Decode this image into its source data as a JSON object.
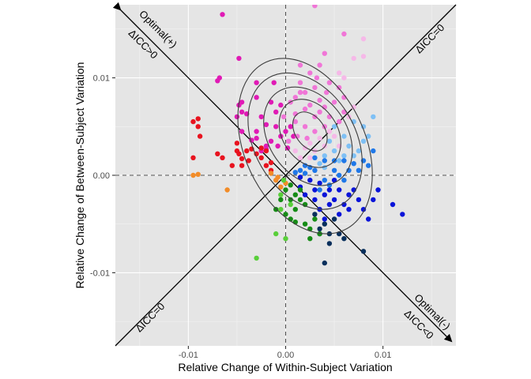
{
  "chart_data": {
    "type": "scatter",
    "title": "",
    "xlabel": "Relative Change of Within-Subject Variation",
    "ylabel": "Relative Change of Between-Subject Variation",
    "xlim": [
      -0.0175,
      0.0175
    ],
    "ylim": [
      -0.0175,
      0.0175
    ],
    "x_ticks": [
      -0.01,
      0.0,
      0.01
    ],
    "x_tick_labels": [
      "-0.01",
      "0.00",
      "0.01"
    ],
    "y_ticks": [
      -0.01,
      0.0,
      0.01
    ],
    "y_tick_labels": [
      "-0.01",
      "0.00",
      "0.01"
    ],
    "grid": true,
    "reference_lines": {
      "x": 0.0,
      "y": 0.0,
      "style": "dashed"
    },
    "diagonal_lines": [
      {
        "name": "optimal",
        "slope": -1,
        "arrows": "both"
      },
      {
        "name": "icc-zero",
        "slope": 1
      }
    ],
    "annotations": [
      {
        "text": "Optimal(+)",
        "position": "upper-left"
      },
      {
        "text": "ΔICC>0",
        "position": "upper-left"
      },
      {
        "text": "ΔICC=0",
        "position": "upper-right"
      },
      {
        "text": "Optimal(-)",
        "position": "lower-right"
      },
      {
        "text": "ΔICC<0",
        "position": "lower-right"
      },
      {
        "text": "ΔICC=0",
        "position": "lower-left"
      }
    ],
    "contour_levels": [
      {
        "center": [
          0.0025,
          0.0045
        ],
        "rx": 0.0015,
        "ry": 0.0022,
        "rotation": -35
      },
      {
        "center": [
          0.0025,
          0.0043
        ],
        "rx": 0.0028,
        "ry": 0.0038,
        "rotation": -35
      },
      {
        "center": [
          0.0023,
          0.004
        ],
        "rx": 0.004,
        "ry": 0.0055,
        "rotation": -35
      },
      {
        "center": [
          0.002,
          0.0035
        ],
        "rx": 0.0052,
        "ry": 0.0075,
        "rotation": -30
      },
      {
        "center": [
          0.002,
          0.003
        ],
        "rx": 0.0062,
        "ry": 0.0095,
        "rotation": -25
      }
    ],
    "series": [
      {
        "name": "magenta",
        "color": "#e01ab5",
        "points": [
          [
            -0.0065,
            0.0165
          ],
          [
            -0.0045,
            0.0045
          ],
          [
            -0.005,
            0.006
          ],
          [
            -0.0068,
            0.01
          ],
          [
            -0.007,
            0.0097
          ],
          [
            -0.0048,
            0.012
          ],
          [
            -0.004,
            0.0063
          ],
          [
            -0.0045,
            0.0075
          ],
          [
            -0.003,
            0.008
          ],
          [
            -0.0015,
            0.0075
          ],
          [
            -0.002,
            0.0052
          ],
          [
            -0.0025,
            0.006
          ],
          [
            -0.003,
            0.0045
          ],
          [
            -0.0035,
            0.0036
          ],
          [
            -0.001,
            0.005
          ],
          [
            -0.0005,
            0.004
          ],
          [
            0.0005,
            0.005
          ],
          [
            -0.0012,
            0.0095
          ],
          [
            -0.001,
            0.0065
          ],
          [
            -0.002,
            0.003
          ],
          [
            -0.0025,
            0.0025
          ],
          [
            -0.0015,
            0.0035
          ],
          [
            -0.0008,
            0.003
          ],
          [
            0.0,
            0.0045
          ],
          [
            -0.0045,
            0.0065
          ],
          [
            -0.003,
            0.0095
          ],
          [
            -0.0048,
            0.0072
          ],
          [
            -0.002,
            0.0027
          ],
          [
            -0.003,
            0.0038
          ],
          [
            0.0002,
            0.0028
          ],
          [
            0.0008,
            0.004
          ],
          [
            -0.0005,
            0.0072
          ]
        ]
      },
      {
        "name": "pink",
        "color": "#f076d7",
        "points": [
          [
            0.001,
            0.008
          ],
          [
            0.002,
            0.0085
          ],
          [
            0.003,
            0.009
          ],
          [
            0.0025,
            0.0072
          ],
          [
            0.0035,
            0.0077
          ],
          [
            0.0042,
            0.0085
          ],
          [
            0.004,
            0.007
          ],
          [
            0.003,
            0.006
          ],
          [
            0.002,
            0.0068
          ],
          [
            0.001,
            0.0063
          ],
          [
            0.0005,
            0.0075
          ],
          [
            0.0015,
            0.0095
          ],
          [
            0.0025,
            0.0105
          ],
          [
            0.0015,
            0.0113
          ],
          [
            0.0035,
            0.0113
          ],
          [
            0.004,
            0.0125
          ],
          [
            0.0032,
            0.01
          ],
          [
            0.0045,
            0.0095
          ],
          [
            0.0055,
            0.009
          ],
          [
            0.005,
            0.0075
          ],
          [
            0.006,
            0.008
          ],
          [
            0.006,
            0.0065
          ],
          [
            0.0055,
            0.0055
          ],
          [
            0.0045,
            0.006
          ],
          [
            0.004,
            0.005
          ],
          [
            0.003,
            0.0045
          ],
          [
            0.002,
            0.005
          ],
          [
            0.001,
            0.0055
          ],
          [
            -0.0002,
            0.006
          ],
          [
            0.0003,
            0.0035
          ],
          [
            0.0012,
            0.004
          ],
          [
            0.0022,
            0.0038
          ],
          [
            0.003,
            0.0174
          ],
          [
            0.006,
            0.0145
          ],
          [
            0.0015,
            0.0085
          ],
          [
            0.0035,
            0.0065
          ]
        ]
      },
      {
        "name": "light-pink",
        "color": "#f6b8e8",
        "points": [
          [
            0.008,
            0.014
          ],
          [
            0.008,
            0.0122
          ],
          [
            0.007,
            0.012
          ],
          [
            0.006,
            0.01
          ],
          [
            0.0055,
            0.0105
          ],
          [
            0.0065,
            0.006
          ],
          [
            0.007,
            0.007
          ],
          [
            0.005,
            0.004
          ],
          [
            0.004,
            0.003
          ],
          [
            0.003,
            0.0025
          ],
          [
            0.002,
            0.0028
          ],
          [
            0.0025,
            0.0018
          ],
          [
            0.0035,
            0.0038
          ],
          [
            0.0045,
            0.0045
          ],
          [
            0.0055,
            0.003
          ],
          [
            0.0015,
            0.0018
          ],
          [
            0.001,
            0.0025
          ],
          [
            0.0025,
            0.0033
          ]
        ]
      },
      {
        "name": "red",
        "color": "#e8131f",
        "points": [
          [
            -0.0095,
            0.0055
          ],
          [
            -0.009,
            0.005
          ],
          [
            -0.009,
            0.0058
          ],
          [
            -0.0088,
            0.004
          ],
          [
            -0.007,
            0.0022
          ],
          [
            -0.005,
            0.0025
          ],
          [
            -0.0048,
            0.0022
          ],
          [
            -0.0045,
            0.0017
          ],
          [
            -0.004,
            0.0025
          ],
          [
            -0.0038,
            0.0015
          ],
          [
            -0.005,
            0.0033
          ],
          [
            -0.003,
            0.0022
          ],
          [
            -0.0025,
            0.0018
          ],
          [
            -0.002,
            0.001
          ],
          [
            -0.0015,
            0.0013
          ],
          [
            -0.0015,
            0.0005
          ],
          [
            -0.002,
            0.0025
          ],
          [
            -0.0055,
            0.001
          ],
          [
            -0.0045,
            0.001
          ],
          [
            -0.0095,
            0.0018
          ],
          [
            -0.0065,
            0.0018
          ],
          [
            -0.0025,
            0.0028
          ],
          [
            -0.0035,
            0.0027
          ]
        ]
      },
      {
        "name": "orange",
        "color": "#f28c28",
        "points": [
          [
            -0.0095,
            0.0
          ],
          [
            -0.009,
            0.0001
          ],
          [
            -0.006,
            -0.0015
          ],
          [
            -0.001,
            -0.0005
          ],
          [
            -0.0005,
            -0.0012
          ],
          [
            0.0,
            -0.0008
          ],
          [
            -0.0008,
            -0.0002
          ],
          [
            -0.0015,
            0.0002
          ]
        ]
      },
      {
        "name": "light-blue",
        "color": "#7ec0f5",
        "points": [
          [
            0.004,
            0.002
          ],
          [
            0.005,
            0.0025
          ],
          [
            0.006,
            0.002
          ],
          [
            0.0055,
            0.0015
          ],
          [
            0.0065,
            0.003
          ],
          [
            0.007,
            0.002
          ],
          [
            0.008,
            0.0035
          ],
          [
            0.0075,
            0.0025
          ],
          [
            0.006,
            0.004
          ],
          [
            0.005,
            0.005
          ],
          [
            0.0085,
            0.004
          ],
          [
            0.009,
            0.006
          ],
          [
            0.007,
            0.0055
          ],
          [
            0.008,
            0.005
          ],
          [
            0.0045,
            0.0035
          ],
          [
            0.0035,
            0.0012
          ],
          [
            0.004,
            0.0008
          ]
        ]
      },
      {
        "name": "mid-blue",
        "color": "#1f78e8",
        "points": [
          [
            0.002,
            0.001
          ],
          [
            0.003,
            0.0005
          ],
          [
            0.004,
            -0.0005
          ],
          [
            0.005,
            0.0005
          ],
          [
            0.006,
            0.0015
          ],
          [
            0.0065,
            0.0005
          ],
          [
            0.0055,
            0.0
          ],
          [
            0.0045,
            -0.001
          ],
          [
            0.0035,
            -0.0015
          ],
          [
            0.007,
            0.0012
          ],
          [
            0.0075,
            0.0005
          ],
          [
            0.008,
            0.0015
          ],
          [
            0.006,
            -0.0005
          ],
          [
            0.0025,
            0.0008
          ],
          [
            0.0015,
            0.0005
          ],
          [
            0.002,
            0.0002
          ],
          [
            0.005,
            0.0015
          ],
          [
            0.004,
            0.0015
          ],
          [
            0.003,
            0.0018
          ],
          [
            0.001,
            0.0003
          ],
          [
            0.0085,
            0.001
          ],
          [
            0.009,
            0.0025
          ]
        ]
      },
      {
        "name": "dark-blue",
        "color": "#0a14d9",
        "points": [
          [
            0.003,
            -0.0015
          ],
          [
            0.004,
            -0.002
          ],
          [
            0.005,
            -0.0025
          ],
          [
            0.0045,
            -0.003
          ],
          [
            0.0035,
            -0.0035
          ],
          [
            0.0055,
            -0.004
          ],
          [
            0.006,
            -0.003
          ],
          [
            0.0065,
            -0.002
          ],
          [
            0.007,
            -0.0015
          ],
          [
            0.0075,
            -0.0025
          ],
          [
            0.008,
            -0.0035
          ],
          [
            0.009,
            -0.0025
          ],
          [
            0.0085,
            -0.0045
          ],
          [
            0.0095,
            -0.0015
          ],
          [
            0.011,
            -0.003
          ],
          [
            0.012,
            -0.004
          ],
          [
            0.0025,
            -0.0005
          ],
          [
            0.0035,
            -0.0008
          ],
          [
            0.0045,
            -0.0015
          ],
          [
            0.0055,
            -0.0015
          ],
          [
            0.0065,
            -0.0035
          ],
          [
            0.0015,
            -0.0012
          ],
          [
            0.002,
            -0.002
          ],
          [
            0.005,
            -0.0005
          ],
          [
            0.004,
            -0.0045
          ],
          [
            0.003,
            -0.0025
          ],
          [
            0.0015,
            -0.0002
          ]
        ]
      },
      {
        "name": "navy",
        "color": "#082f5c",
        "points": [
          [
            0.003,
            -0.004
          ],
          [
            0.004,
            -0.005
          ],
          [
            0.0045,
            -0.006
          ],
          [
            0.0055,
            -0.006
          ],
          [
            0.0035,
            -0.0055
          ],
          [
            0.005,
            -0.0045
          ],
          [
            0.006,
            -0.0065
          ],
          [
            0.008,
            -0.0078
          ],
          [
            0.004,
            -0.009
          ],
          [
            0.0045,
            -0.007
          ],
          [
            0.0035,
            -0.006
          ]
        ]
      },
      {
        "name": "green",
        "color": "#168c16",
        "points": [
          [
            0.001,
            -0.002
          ],
          [
            0.0015,
            -0.0025
          ],
          [
            0.002,
            -0.003
          ],
          [
            0.001,
            -0.0035
          ],
          [
            0.0,
            -0.004
          ],
          [
            0.0005,
            -0.0045
          ],
          [
            0.002,
            -0.005
          ],
          [
            0.003,
            -0.0045
          ],
          [
            0.0035,
            -0.006
          ],
          [
            0.0025,
            -0.0055
          ],
          [
            0.0015,
            -0.0015
          ],
          [
            0.0005,
            -0.001
          ],
          [
            0.0,
            -0.0015
          ],
          [
            -0.0005,
            -0.0025
          ],
          [
            -0.001,
            -0.0035
          ],
          [
            0.0005,
            -0.0025
          ],
          [
            0.0025,
            -0.0065
          ],
          [
            0.001,
            -0.0048
          ]
        ]
      },
      {
        "name": "light-green",
        "color": "#59cf3a",
        "points": [
          [
            -0.003,
            -0.0085
          ],
          [
            0.0,
            -0.0065
          ],
          [
            -0.001,
            -0.006
          ],
          [
            -0.0005,
            -0.0035
          ],
          [
            0.0005,
            -0.003
          ],
          [
            -0.0005,
            -0.002
          ],
          [
            -0.0002,
            -0.0005
          ]
        ]
      }
    ]
  }
}
